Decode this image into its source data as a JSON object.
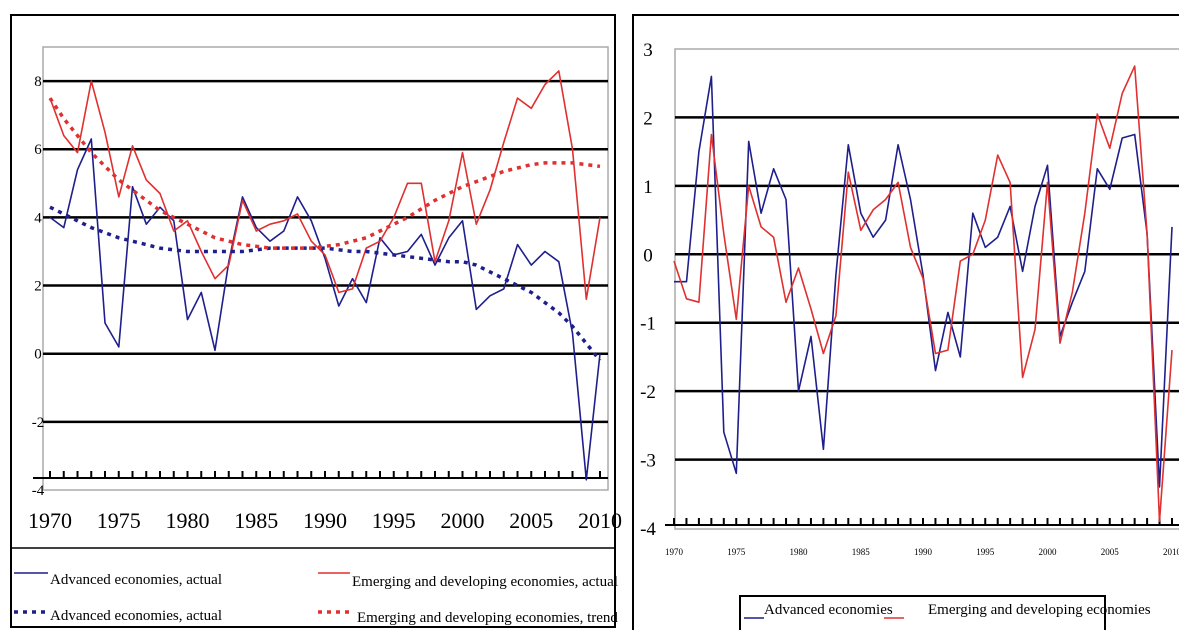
{
  "chart_data": [
    {
      "type": "line",
      "ylim": [
        -4,
        9
      ],
      "grid": true,
      "x_ticks": [
        "1970",
        "1975",
        "1980",
        "1985",
        "1990",
        "1995",
        "2000",
        "2005",
        "2010"
      ],
      "y_ticks": [
        "8",
        "6",
        "4",
        "2",
        "0",
        "-2",
        "-4"
      ],
      "x": [
        1970,
        1971,
        1972,
        1973,
        1974,
        1975,
        1976,
        1977,
        1978,
        1979,
        1980,
        1981,
        1982,
        1983,
        1984,
        1985,
        1986,
        1987,
        1988,
        1989,
        1990,
        1991,
        1992,
        1993,
        1994,
        1995,
        1996,
        1997,
        1998,
        1999,
        2000,
        2001,
        2002,
        2003,
        2004,
        2005,
        2006,
        2007,
        2008,
        2009,
        2010
      ],
      "legend_position": "bottom",
      "series": [
        {
          "name": "Advanced economies, actual",
          "color": "#1f1f8c",
          "style": "solid",
          "values": [
            4.0,
            3.7,
            5.4,
            6.3,
            0.9,
            0.2,
            4.9,
            3.8,
            4.3,
            3.9,
            1.0,
            1.8,
            0.1,
            2.7,
            4.6,
            3.7,
            3.3,
            3.6,
            4.6,
            3.9,
            2.8,
            1.4,
            2.2,
            1.5,
            3.4,
            2.9,
            3.0,
            3.5,
            2.6,
            3.4,
            3.9,
            1.3,
            1.7,
            1.9,
            3.2,
            2.6,
            3.0,
            2.7,
            0.6,
            -3.7,
            0.0
          ]
        },
        {
          "name": "Emerging and developing economies, actual",
          "color": "#e03030",
          "style": "solid",
          "values": [
            7.5,
            6.4,
            5.9,
            8.0,
            6.5,
            4.6,
            6.1,
            5.1,
            4.7,
            3.6,
            3.9,
            3.0,
            2.2,
            2.6,
            4.5,
            3.6,
            3.8,
            3.9,
            4.1,
            3.3,
            2.9,
            1.8,
            1.9,
            3.1,
            3.3,
            4.0,
            5.0,
            5.0,
            2.7,
            3.9,
            5.9,
            3.8,
            4.8,
            6.2,
            7.5,
            7.2,
            7.9,
            8.3,
            6.0,
            1.6,
            4.0
          ]
        },
        {
          "name": "Advanced economies, actual",
          "color": "#1f1f8c",
          "style": "dotted",
          "values": [
            4.3,
            4.1,
            3.9,
            3.7,
            3.55,
            3.4,
            3.3,
            3.2,
            3.1,
            3.05,
            3.0,
            3.0,
            3.0,
            3.0,
            3.0,
            3.05,
            3.1,
            3.1,
            3.1,
            3.1,
            3.1,
            3.05,
            3.0,
            3.0,
            2.95,
            2.9,
            2.85,
            2.8,
            2.75,
            2.7,
            2.7,
            2.6,
            2.4,
            2.2,
            2.0,
            1.8,
            1.5,
            1.2,
            0.8,
            0.3,
            -0.2
          ]
        },
        {
          "name": "Emerging and developing economies, trend",
          "color": "#e03030",
          "style": "dotted",
          "values": [
            7.5,
            6.9,
            6.4,
            5.9,
            5.5,
            5.1,
            4.8,
            4.5,
            4.2,
            4.0,
            3.8,
            3.6,
            3.4,
            3.3,
            3.2,
            3.15,
            3.1,
            3.1,
            3.1,
            3.1,
            3.15,
            3.2,
            3.3,
            3.4,
            3.6,
            3.8,
            4.0,
            4.25,
            4.5,
            4.7,
            4.9,
            5.05,
            5.2,
            5.35,
            5.45,
            5.55,
            5.6,
            5.6,
            5.6,
            5.55,
            5.5
          ]
        }
      ]
    },
    {
      "type": "line",
      "ylim": [
        -4,
        3
      ],
      "grid": true,
      "x_ticks": [
        "1970",
        "1975",
        "1980",
        "1985",
        "1990",
        "1995",
        "2000",
        "2005",
        "2010"
      ],
      "y_ticks": [
        "3",
        "2",
        "1",
        "0",
        "-1",
        "-2",
        "-3",
        "-4"
      ],
      "x": [
        1970,
        1971,
        1972,
        1973,
        1974,
        1975,
        1976,
        1977,
        1978,
        1979,
        1980,
        1981,
        1982,
        1983,
        1984,
        1985,
        1986,
        1987,
        1988,
        1989,
        1990,
        1991,
        1992,
        1993,
        1994,
        1995,
        1996,
        1997,
        1998,
        1999,
        2000,
        2001,
        2002,
        2003,
        2004,
        2005,
        2006,
        2007,
        2008,
        2009,
        2010
      ],
      "legend_position": "bottom",
      "series": [
        {
          "name": "Advanced economies",
          "color": "#1f1f8c",
          "style": "solid",
          "values": [
            -0.4,
            -0.4,
            1.5,
            2.6,
            -2.6,
            -3.2,
            1.65,
            0.6,
            1.25,
            0.8,
            -2.0,
            -1.2,
            -2.85,
            -0.3,
            1.6,
            0.6,
            0.25,
            0.5,
            1.6,
            0.8,
            -0.3,
            -1.7,
            -0.85,
            -1.5,
            0.6,
            0.1,
            0.25,
            0.7,
            -0.25,
            0.7,
            1.3,
            -1.2,
            -0.7,
            -0.25,
            1.25,
            0.95,
            1.7,
            1.75,
            0.3,
            -3.4,
            0.4
          ]
        },
        {
          "name": "Emerging and developing economies",
          "color": "#e03030",
          "style": "solid",
          "values": [
            -0.1,
            -0.65,
            -0.7,
            1.75,
            0.3,
            -0.95,
            1.0,
            0.4,
            0.25,
            -0.7,
            -0.2,
            -0.8,
            -1.45,
            -0.9,
            1.2,
            0.35,
            0.65,
            0.8,
            1.05,
            0.1,
            -0.35,
            -1.45,
            -1.4,
            -0.1,
            0.0,
            0.5,
            1.45,
            1.05,
            -1.8,
            -1.1,
            1.05,
            -1.3,
            -0.55,
            0.6,
            2.05,
            1.55,
            2.35,
            2.75,
            0.3,
            -3.9,
            -1.4
          ]
        }
      ]
    }
  ]
}
